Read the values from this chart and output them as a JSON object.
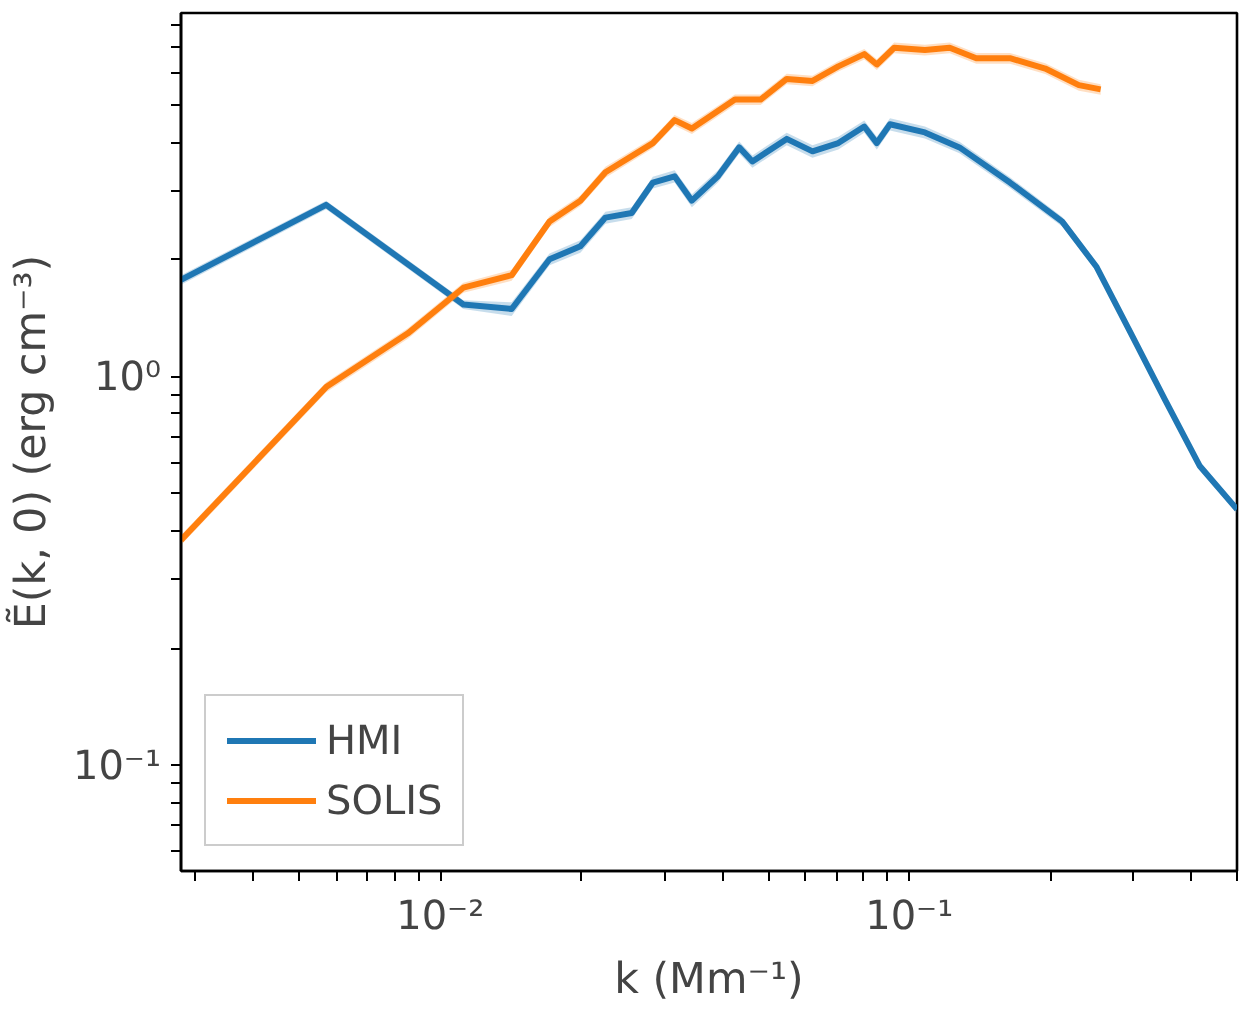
{
  "chart_data": {
    "type": "line",
    "xlabel": "k (Mm⁻¹)",
    "ylabel": "Ẽ(k, 0) (erg cm⁻³)",
    "log": "xy",
    "grid": false,
    "legend": "bottom left",
    "line_style": "solid",
    "marker": "none",
    "xlim": [
      0.0028,
      0.5
    ],
    "ylim": [
      0.0534,
      8.6
    ],
    "xticks": [
      {
        "value": 0.003,
        "label": null
      },
      {
        "value": 0.004,
        "label": null
      },
      {
        "value": 0.005,
        "label": null
      },
      {
        "value": 0.006,
        "label": null
      },
      {
        "value": 0.007,
        "label": null
      },
      {
        "value": 0.008,
        "label": null
      },
      {
        "value": 0.009,
        "label": null
      },
      {
        "value": 0.01,
        "label": "10⁻²"
      },
      {
        "value": 0.02,
        "label": null
      },
      {
        "value": 0.03,
        "label": null
      },
      {
        "value": 0.04,
        "label": null
      },
      {
        "value": 0.05,
        "label": null
      },
      {
        "value": 0.06,
        "label": null
      },
      {
        "value": 0.07,
        "label": null
      },
      {
        "value": 0.08,
        "label": null
      },
      {
        "value": 0.09,
        "label": null
      },
      {
        "value": 0.1,
        "label": "10⁻¹"
      },
      {
        "value": 0.2,
        "label": null
      },
      {
        "value": 0.3,
        "label": null
      },
      {
        "value": 0.4,
        "label": null
      },
      {
        "value": 0.5,
        "label": null
      }
    ],
    "yticks": [
      {
        "value": 0.06,
        "label": null
      },
      {
        "value": 0.07,
        "label": null
      },
      {
        "value": 0.08,
        "label": null
      },
      {
        "value": 0.09,
        "label": null
      },
      {
        "value": 0.1,
        "label": "10⁻¹"
      },
      {
        "value": 0.2,
        "label": null
      },
      {
        "value": 0.3,
        "label": null
      },
      {
        "value": 0.4,
        "label": null
      },
      {
        "value": 0.5,
        "label": null
      },
      {
        "value": 0.6,
        "label": null
      },
      {
        "value": 0.7,
        "label": null
      },
      {
        "value": 0.8,
        "label": null
      },
      {
        "value": 0.9,
        "label": null
      },
      {
        "value": 1,
        "label": "10⁰"
      },
      {
        "value": 2,
        "label": null
      },
      {
        "value": 3,
        "label": null
      },
      {
        "value": 4,
        "label": null
      },
      {
        "value": 5,
        "label": null
      },
      {
        "value": 6,
        "label": null
      },
      {
        "value": 7,
        "label": null
      },
      {
        "value": 8,
        "label": null
      }
    ],
    "series": [
      {
        "name": "HMI",
        "color": "#1f77b4",
        "x": [
          0.0028,
          0.00571,
          0.0112,
          0.0142,
          0.0171,
          0.0199,
          0.0225,
          0.0256,
          0.0284,
          0.0316,
          0.0344,
          0.0391,
          0.0434,
          0.0463,
          0.0548,
          0.0622,
          0.0706,
          0.0802,
          0.0853,
          0.091,
          0.108,
          0.128,
          0.164,
          0.212,
          0.251,
          0.297,
          0.351,
          0.416,
          0.5
        ],
        "values": [
          1.77,
          2.76,
          1.53,
          1.49,
          2.0,
          2.16,
          2.56,
          2.63,
          3.15,
          3.27,
          2.83,
          3.27,
          3.88,
          3.57,
          4.08,
          3.79,
          3.98,
          4.39,
          3.98,
          4.45,
          4.24,
          3.88,
          3.15,
          2.5,
          1.91,
          1.29,
          0.871,
          0.589,
          0.455
        ],
        "lower": [
          1.72,
          2.69,
          1.49,
          1.43,
          1.93,
          2.08,
          2.47,
          2.54,
          3.04,
          3.15,
          2.72,
          3.15,
          3.74,
          3.44,
          3.93,
          3.65,
          3.83,
          4.23,
          3.83,
          4.29,
          4.09,
          3.75,
          3.05,
          2.43,
          1.86,
          1.26,
          0.85,
          0.575,
          0.445
        ],
        "upper": [
          1.82,
          2.83,
          1.57,
          1.55,
          2.07,
          2.24,
          2.65,
          2.72,
          3.26,
          3.39,
          2.94,
          3.39,
          4.02,
          3.7,
          4.23,
          3.93,
          4.13,
          4.55,
          4.13,
          4.61,
          4.39,
          4.01,
          3.25,
          2.57,
          1.96,
          1.32,
          0.892,
          0.603,
          0.465
        ]
      },
      {
        "name": "SOLIS",
        "color": "#ff7f0e",
        "x": [
          0.0028,
          0.00571,
          0.00853,
          0.0112,
          0.0142,
          0.0171,
          0.0199,
          0.0225,
          0.0284,
          0.0316,
          0.0344,
          0.0425,
          0.0482,
          0.0548,
          0.0622,
          0.0706,
          0.0802,
          0.0853,
          0.0929,
          0.108,
          0.122,
          0.139,
          0.164,
          0.195,
          0.23,
          0.256
        ],
        "values": [
          0.379,
          0.938,
          1.29,
          1.69,
          1.82,
          2.5,
          2.83,
          3.35,
          3.98,
          4.56,
          4.34,
          5.15,
          5.15,
          5.82,
          5.75,
          6.27,
          6.74,
          6.34,
          7.0,
          6.91,
          7.0,
          6.58,
          6.58,
          6.19,
          5.61,
          5.47
        ],
        "lower": [
          0.368,
          0.91,
          1.25,
          1.64,
          1.76,
          2.42,
          2.74,
          3.24,
          3.86,
          4.42,
          4.2,
          4.99,
          4.99,
          5.64,
          5.57,
          6.08,
          6.53,
          6.14,
          6.78,
          6.69,
          6.78,
          6.37,
          6.37,
          5.99,
          5.43,
          5.3
        ],
        "upper": [
          0.39,
          0.966,
          1.33,
          1.74,
          1.88,
          2.58,
          2.92,
          3.46,
          4.1,
          4.7,
          4.48,
          5.31,
          5.31,
          6.0,
          5.93,
          6.46,
          6.95,
          6.54,
          7.22,
          7.13,
          7.22,
          6.79,
          6.79,
          6.39,
          5.79,
          5.64
        ]
      }
    ]
  }
}
